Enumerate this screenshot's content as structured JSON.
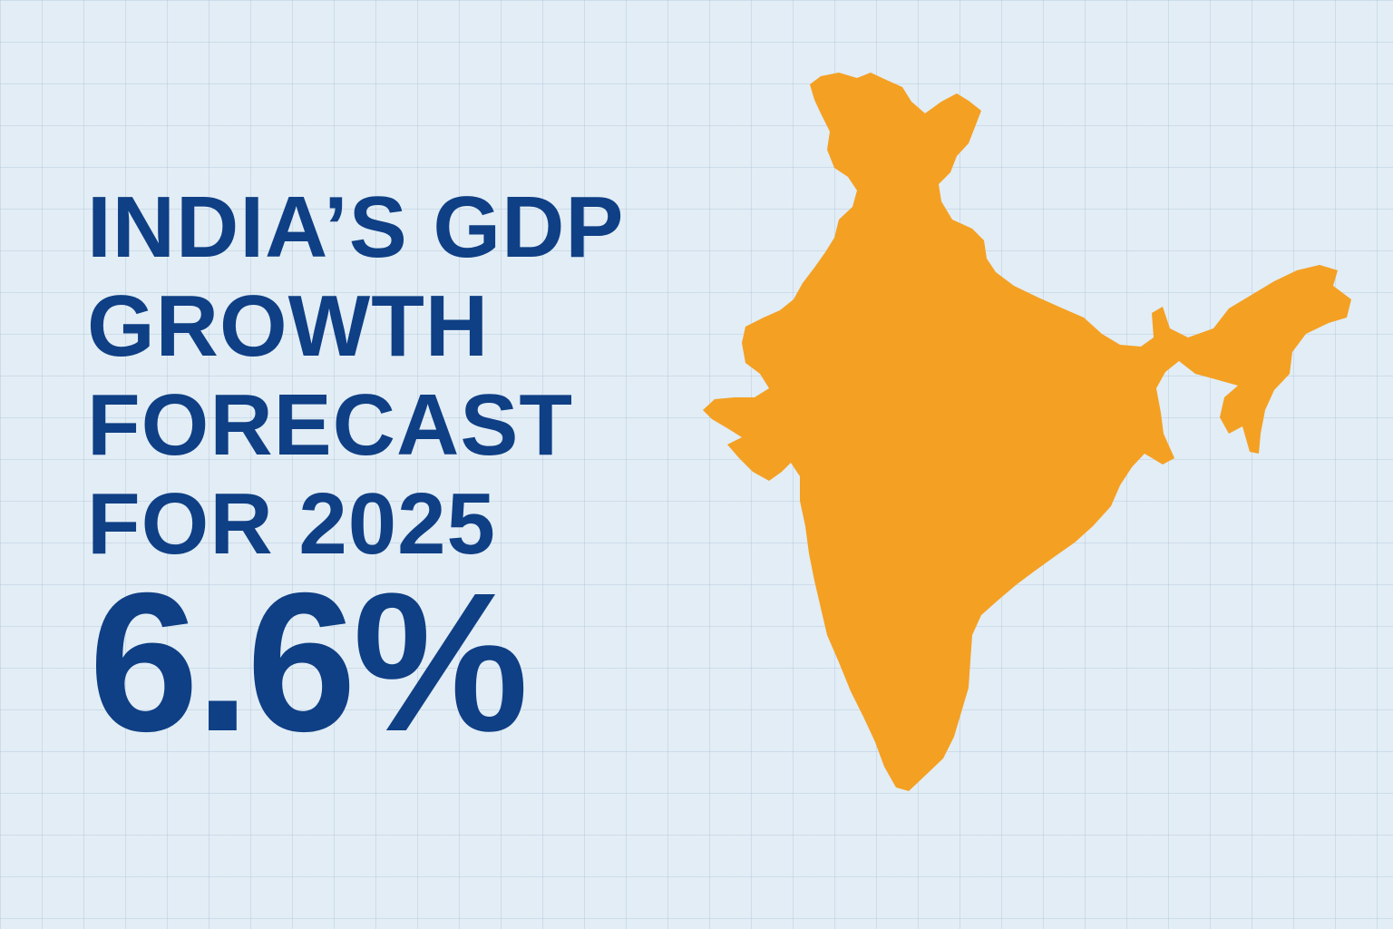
{
  "headline": {
    "lines": [
      "INDIA’S GDP",
      "GROWTH",
      "FORECAST",
      "FOR 2025"
    ]
  },
  "figure": {
    "value": "6.6%"
  },
  "map": {
    "icon": "india-map-icon"
  },
  "colors": {
    "background": "#e2edf5",
    "text": "#0f3f85",
    "map_fill": "#f4a023"
  }
}
